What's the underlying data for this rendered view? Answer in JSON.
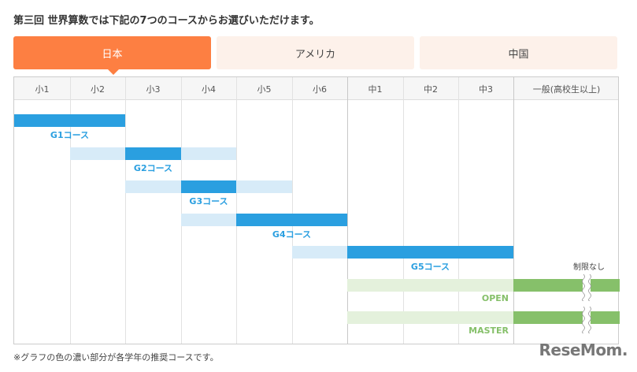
{
  "title": "第三回 世界算数では下記の7つのコースからお選びいただけます。",
  "tabs": [
    {
      "label": "日本",
      "active": true
    },
    {
      "label": "アメリカ",
      "active": false
    },
    {
      "label": "中国",
      "active": false
    }
  ],
  "columns": [
    "小1",
    "小2",
    "小3",
    "小4",
    "小5",
    "小6",
    "中1",
    "中2",
    "中3",
    "一般(高校生以上)"
  ],
  "courses": [
    {
      "name": "G1コース",
      "light": null,
      "dark": [
        0,
        2
      ],
      "color": "#2a9fe0",
      "light_color": "#d7ebf8"
    },
    {
      "name": "G2コース",
      "light": [
        1,
        4
      ],
      "dark": [
        2,
        3
      ],
      "color": "#2a9fe0",
      "light_color": "#d7ebf8"
    },
    {
      "name": "G3コース",
      "light": [
        2,
        5
      ],
      "dark": [
        3,
        4
      ],
      "color": "#2a9fe0",
      "light_color": "#d7ebf8"
    },
    {
      "name": "G4コース",
      "light": [
        3,
        6
      ],
      "dark": [
        4,
        6
      ],
      "color": "#2a9fe0",
      "light_color": "#d7ebf8"
    },
    {
      "name": "G5コース",
      "light": [
        5,
        9
      ],
      "dark": [
        6,
        9
      ],
      "color": "#2a9fe0",
      "light_color": "#d7ebf8"
    },
    {
      "name": "OPEN",
      "light": [
        6,
        9
      ],
      "dark": [
        9,
        10
      ],
      "color": "#86c06a",
      "light_color": "#e4f1dc"
    },
    {
      "name": "MASTER",
      "light": [
        6,
        9
      ],
      "dark": [
        9,
        10
      ],
      "color": "#86c06a",
      "light_color": "#e4f1dc"
    }
  ],
  "no_limit": "制限なし",
  "footnote": "※グラフの色の濃い部分が各学年の推奨コースです。",
  "logo": "ReseMom"
}
